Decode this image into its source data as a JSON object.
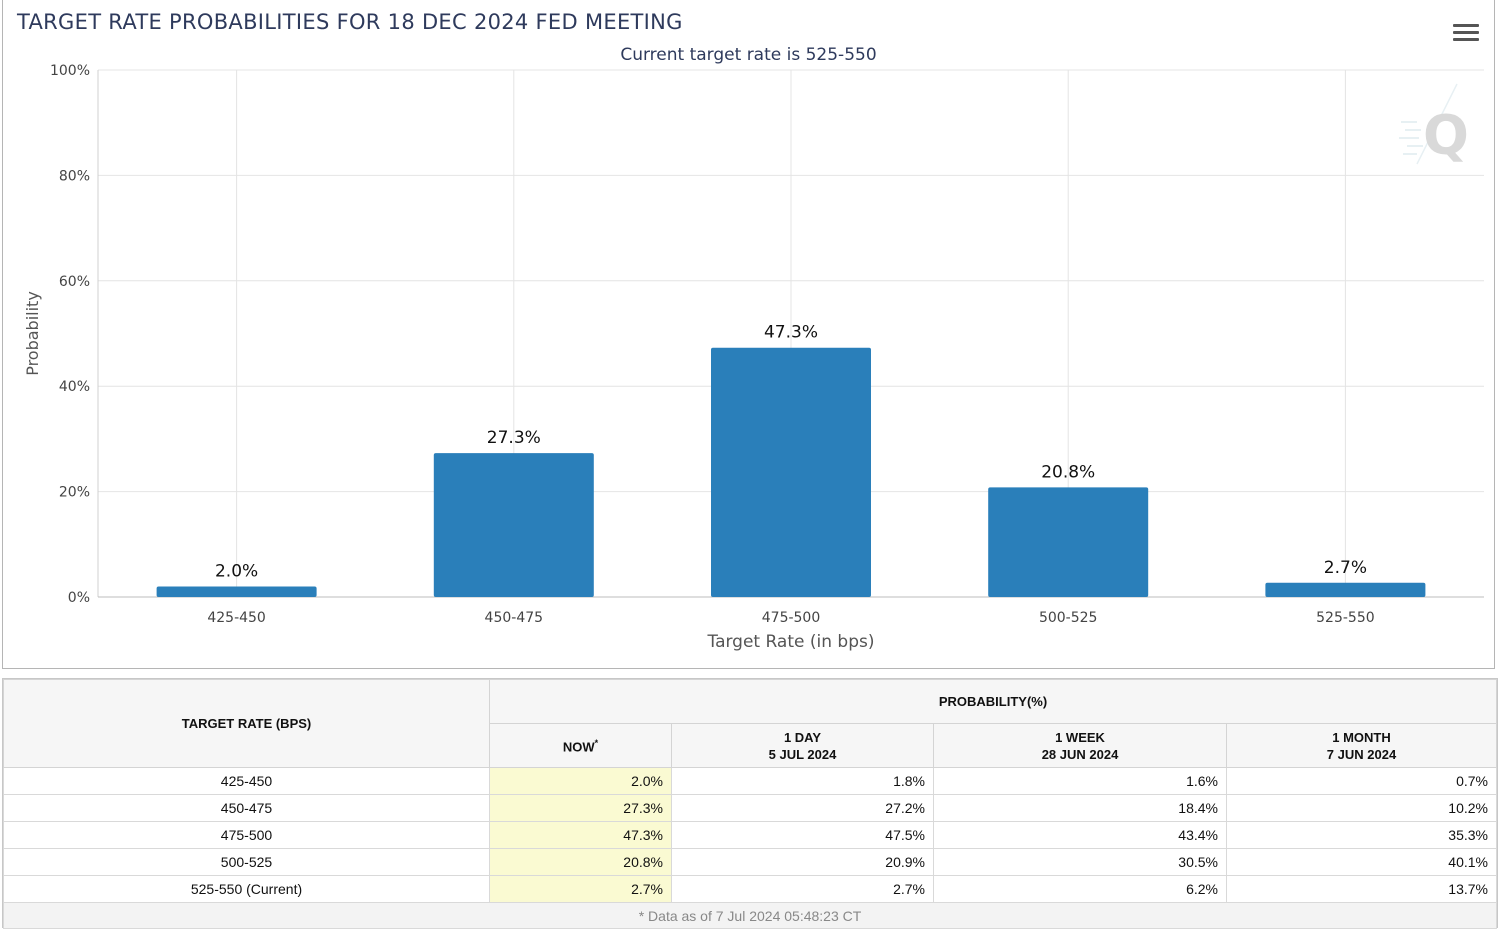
{
  "chart_data": {
    "type": "bar",
    "title": "TARGET RATE PROBABILITIES FOR 18 DEC 2024 FED MEETING",
    "subtitle": "Current target rate is 525-550",
    "xlabel": "Target Rate (in bps)",
    "ylabel": "Probability",
    "categories": [
      "425-450",
      "450-475",
      "475-500",
      "500-525",
      "525-550"
    ],
    "values": [
      2.0,
      27.3,
      47.3,
      20.8,
      2.7
    ],
    "data_labels": [
      "2.0%",
      "27.3%",
      "47.3%",
      "20.8%",
      "2.7%"
    ],
    "ylim": [
      0,
      100
    ],
    "y_ticks": [
      0,
      20,
      40,
      60,
      80,
      100
    ],
    "y_tick_labels": [
      "0%",
      "20%",
      "40%",
      "60%",
      "80%",
      "100%"
    ],
    "grid": true,
    "legend": "none",
    "bar_color": "#2a7fba"
  },
  "menu_icon": "hamburger-menu-icon",
  "watermark_icon": "q-logo-icon",
  "table": {
    "target_header": "TARGET RATE (BPS)",
    "probability_header": "PROBABILITY(%)",
    "columns": [
      {
        "line1": "NOW",
        "line2": "",
        "sup": "*"
      },
      {
        "line1": "1 DAY",
        "line2": "5 JUL 2024",
        "sup": ""
      },
      {
        "line1": "1 WEEK",
        "line2": "28 JUN 2024",
        "sup": ""
      },
      {
        "line1": "1 MONTH",
        "line2": "7 JUN 2024",
        "sup": ""
      }
    ],
    "rows": [
      {
        "rate": "425-450",
        "values": [
          "2.0%",
          "1.8%",
          "1.6%",
          "0.7%"
        ]
      },
      {
        "rate": "450-475",
        "values": [
          "27.3%",
          "27.2%",
          "18.4%",
          "10.2%"
        ]
      },
      {
        "rate": "475-500",
        "values": [
          "47.3%",
          "47.5%",
          "43.4%",
          "35.3%"
        ]
      },
      {
        "rate": "500-525",
        "values": [
          "20.8%",
          "20.9%",
          "30.5%",
          "40.1%"
        ]
      },
      {
        "rate": "525-550 (Current)",
        "values": [
          "2.7%",
          "2.7%",
          "6.2%",
          "13.7%"
        ]
      }
    ],
    "footnote": "* Data as of 7 Jul 2024 05:48:23 CT",
    "now_highlight_color": "#fafad2"
  }
}
